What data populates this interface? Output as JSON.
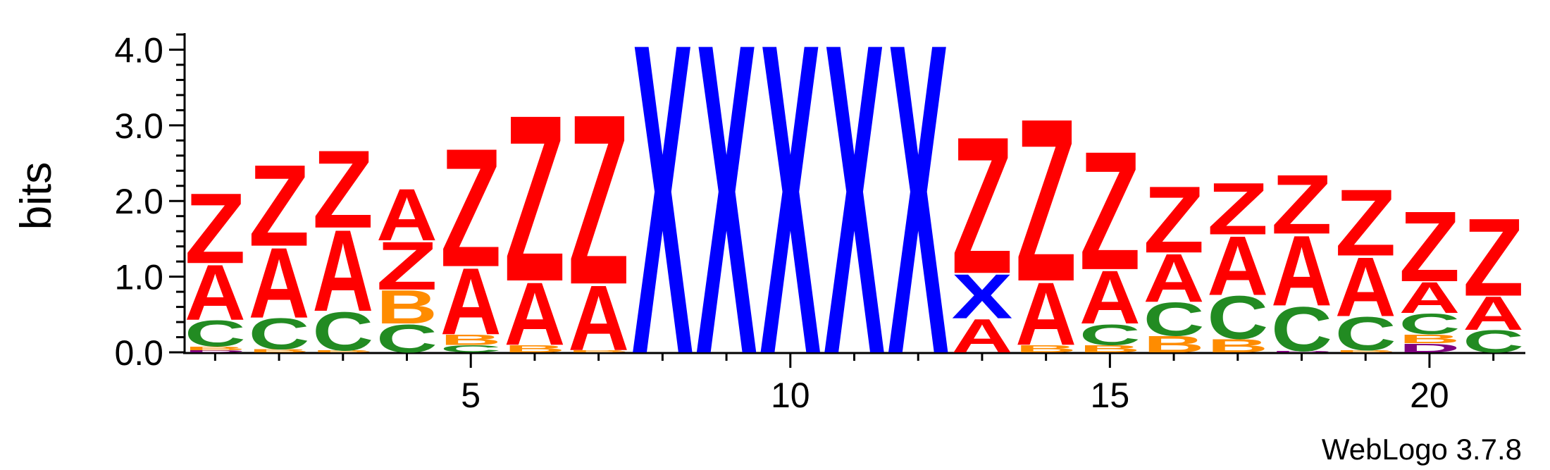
{
  "chart_data": {
    "type": "sequence-logo",
    "ylabel": "bits",
    "ylim": [
      0,
      4.2
    ],
    "y_ticks": [
      "0.0",
      "1.0",
      "2.0",
      "3.0",
      "4.0"
    ],
    "x_tick_labels": [
      "5",
      "10",
      "15",
      "20"
    ],
    "x_tick_positions": [
      5,
      10,
      15,
      20
    ],
    "footer": "WebLogo 3.7.8",
    "colors": {
      "A": "#ff0000",
      "Z": "#ff0000",
      "C": "#228b22",
      "B": "#ff8c00",
      "X": "#0000ff",
      "D": "#800080"
    },
    "positions": [
      {
        "pos": 1,
        "stack": [
          {
            "letter": "D",
            "bits": 0.03
          },
          {
            "letter": "B",
            "bits": 0.05
          },
          {
            "letter": "C",
            "bits": 0.35
          },
          {
            "letter": "A",
            "bits": 0.75
          },
          {
            "letter": "Z",
            "bits": 0.95
          }
        ]
      },
      {
        "pos": 2,
        "stack": [
          {
            "letter": "B",
            "bits": 0.04
          },
          {
            "letter": "C",
            "bits": 0.42
          },
          {
            "letter": "A",
            "bits": 0.95
          },
          {
            "letter": "Z",
            "bits": 1.1
          }
        ]
      },
      {
        "pos": 3,
        "stack": [
          {
            "letter": "B",
            "bits": 0.03
          },
          {
            "letter": "C",
            "bits": 0.52
          },
          {
            "letter": "A",
            "bits": 1.1
          },
          {
            "letter": "Z",
            "bits": 1.05
          }
        ]
      },
      {
        "pos": 4,
        "stack": [
          {
            "letter": "C",
            "bits": 0.38
          },
          {
            "letter": "B",
            "bits": 0.45
          },
          {
            "letter": "Z",
            "bits": 0.65
          },
          {
            "letter": "A",
            "bits": 0.7
          }
        ]
      },
      {
        "pos": 5,
        "stack": [
          {
            "letter": "C",
            "bits": 0.1
          },
          {
            "letter": "B",
            "bits": 0.14
          },
          {
            "letter": "A",
            "bits": 0.9
          },
          {
            "letter": "Z",
            "bits": 1.6
          }
        ]
      },
      {
        "pos": 6,
        "stack": [
          {
            "letter": "B",
            "bits": 0.1
          },
          {
            "letter": "A",
            "bits": 0.85
          },
          {
            "letter": "Z",
            "bits": 2.25
          }
        ]
      },
      {
        "pos": 7,
        "stack": [
          {
            "letter": "B",
            "bits": 0.03
          },
          {
            "letter": "A",
            "bits": 0.88
          },
          {
            "letter": "Z",
            "bits": 2.3
          }
        ]
      },
      {
        "pos": 8,
        "stack": [
          {
            "letter": "X",
            "bits": 4.2
          }
        ]
      },
      {
        "pos": 9,
        "stack": [
          {
            "letter": "X",
            "bits": 4.2
          }
        ]
      },
      {
        "pos": 10,
        "stack": [
          {
            "letter": "X",
            "bits": 4.2
          }
        ]
      },
      {
        "pos": 11,
        "stack": [
          {
            "letter": "X",
            "bits": 4.2
          }
        ]
      },
      {
        "pos": 12,
        "stack": [
          {
            "letter": "X",
            "bits": 4.2
          }
        ]
      },
      {
        "pos": 13,
        "stack": [
          {
            "letter": "A",
            "bits": 0.45
          },
          {
            "letter": "X",
            "bits": 0.6
          },
          {
            "letter": "Z",
            "bits": 1.85
          }
        ]
      },
      {
        "pos": 14,
        "stack": [
          {
            "letter": "B",
            "bits": 0.1
          },
          {
            "letter": "A",
            "bits": 0.85
          },
          {
            "letter": "Z",
            "bits": 2.2
          }
        ]
      },
      {
        "pos": 15,
        "stack": [
          {
            "letter": "B",
            "bits": 0.1
          },
          {
            "letter": "C",
            "bits": 0.28
          },
          {
            "letter": "A",
            "bits": 0.72
          },
          {
            "letter": "Z",
            "bits": 1.6
          }
        ]
      },
      {
        "pos": 16,
        "stack": [
          {
            "letter": "B",
            "bits": 0.22
          },
          {
            "letter": "C",
            "bits": 0.45
          },
          {
            "letter": "A",
            "bits": 0.65
          },
          {
            "letter": "Z",
            "bits": 0.9
          }
        ]
      },
      {
        "pos": 17,
        "stack": [
          {
            "letter": "B",
            "bits": 0.18
          },
          {
            "letter": "C",
            "bits": 0.58
          },
          {
            "letter": "A",
            "bits": 0.8
          },
          {
            "letter": "Z",
            "bits": 0.7
          }
        ]
      },
      {
        "pos": 18,
        "stack": [
          {
            "letter": "D",
            "bits": 0.02
          },
          {
            "letter": "C",
            "bits": 0.6
          },
          {
            "letter": "A",
            "bits": 0.95
          },
          {
            "letter": "Z",
            "bits": 0.8
          }
        ]
      },
      {
        "pos": 19,
        "stack": [
          {
            "letter": "B",
            "bits": 0.03
          },
          {
            "letter": "C",
            "bits": 0.45
          },
          {
            "letter": "A",
            "bits": 0.8
          },
          {
            "letter": "Z",
            "bits": 0.9
          }
        ]
      },
      {
        "pos": 20,
        "stack": [
          {
            "letter": "D",
            "bits": 0.12
          },
          {
            "letter": "B",
            "bits": 0.12
          },
          {
            "letter": "C",
            "bits": 0.28
          },
          {
            "letter": "A",
            "bits": 0.42
          },
          {
            "letter": "Z",
            "bits": 0.95
          }
        ]
      },
      {
        "pos": 21,
        "stack": [
          {
            "letter": "C",
            "bits": 0.3
          },
          {
            "letter": "A",
            "bits": 0.45
          },
          {
            "letter": "Z",
            "bits": 1.05
          }
        ]
      }
    ]
  }
}
